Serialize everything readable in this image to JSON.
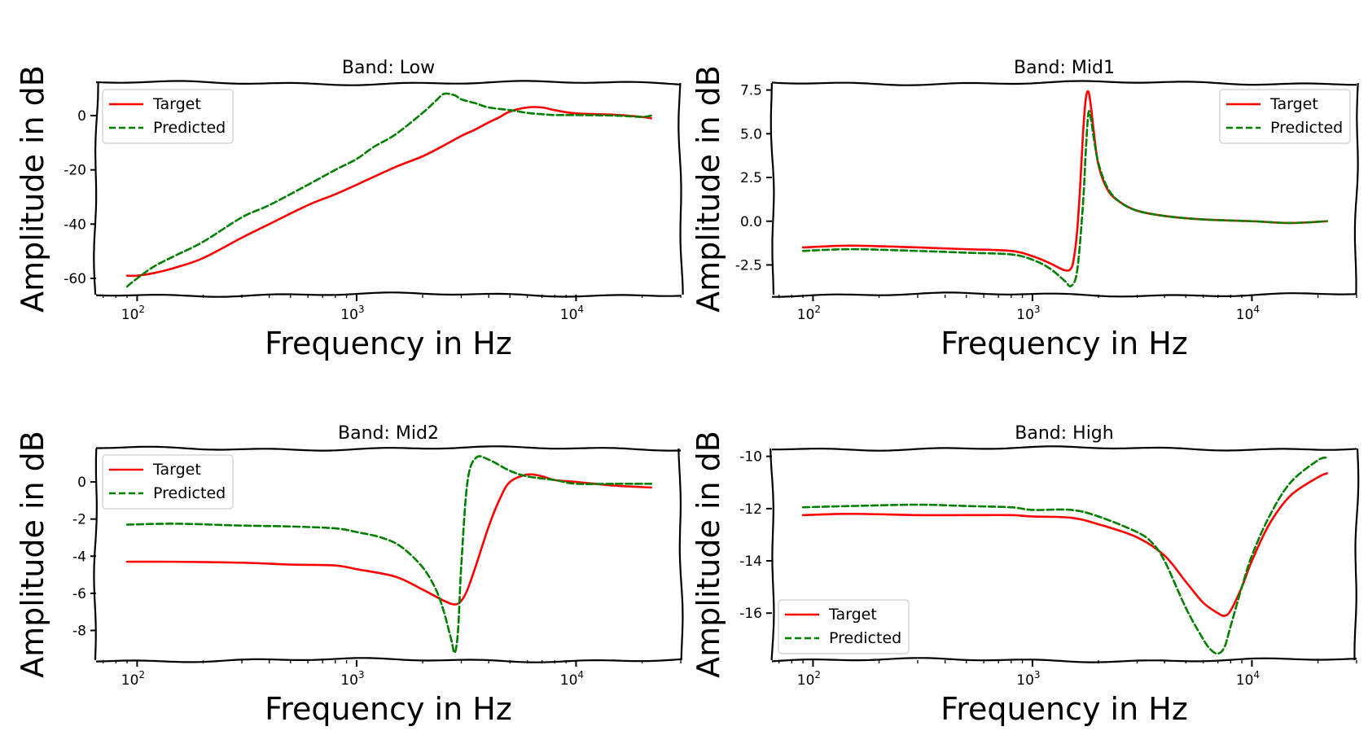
{
  "colors": {
    "target": "#ff0000",
    "predicted": "#007f00",
    "axes": "#000000",
    "background": "#ffffff"
  },
  "chart_data": [
    {
      "type": "line",
      "title": "Band: Low",
      "xlabel": "Frequency in Hz",
      "ylabel": "Amplitude in dB",
      "xscale": "log",
      "xlim": [
        65,
        30000
      ],
      "ylim": [
        -66,
        12
      ],
      "xticks": [
        100,
        1000,
        10000
      ],
      "xtick_labels": [
        [
          "10",
          "2"
        ],
        [
          "10",
          "3"
        ],
        [
          "10",
          "4"
        ]
      ],
      "yticks": [
        0,
        -20,
        -40,
        -60
      ],
      "ytick_labels": [
        "0",
        "-20",
        "-40",
        "-60"
      ],
      "legend": {
        "position": "top-left",
        "entries": [
          "Target",
          "Predicted"
        ]
      },
      "series": [
        {
          "name": "Target",
          "style": "solid",
          "x": [
            90,
            100,
            120,
            150,
            200,
            300,
            400,
            600,
            800,
            1000,
            1500,
            2000,
            2500,
            3000,
            3500,
            4000,
            4500,
            5000,
            6000,
            7000,
            8000,
            10000,
            15000,
            20000,
            22000
          ],
          "y": [
            -59,
            -59,
            -58,
            -56,
            -52.5,
            -45,
            -40,
            -33,
            -29,
            -25.5,
            -19,
            -15,
            -11,
            -7.5,
            -5,
            -2.5,
            -0.5,
            1.5,
            3,
            3,
            2,
            0.8,
            0.3,
            -0.5,
            -1
          ]
        },
        {
          "name": "Predicted",
          "style": "dashed",
          "x": [
            90,
            100,
            120,
            150,
            200,
            300,
            400,
            600,
            800,
            1000,
            1200,
            1500,
            2000,
            2300,
            2500,
            2800,
            3000,
            3500,
            4000,
            5000,
            6000,
            7000,
            8000,
            10000,
            15000,
            20000,
            22000
          ],
          "y": [
            -63,
            -60,
            -55.5,
            -51.5,
            -46.5,
            -37.5,
            -33,
            -25.5,
            -20,
            -16,
            -11.5,
            -7,
            1,
            5.5,
            8,
            7.5,
            6,
            4.5,
            3,
            2,
            1,
            0.5,
            0.2,
            0.2,
            0,
            -0.5,
            0
          ]
        }
      ]
    },
    {
      "type": "line",
      "title": "Band: Mid1",
      "xlabel": "Frequency in Hz",
      "ylabel": "Amplitude in dB",
      "xscale": "log",
      "xlim": [
        65,
        30000
      ],
      "ylim": [
        -4.2,
        7.9
      ],
      "xticks": [
        100,
        1000,
        10000
      ],
      "xtick_labels": [
        [
          "10",
          "2"
        ],
        [
          "10",
          "3"
        ],
        [
          "10",
          "4"
        ]
      ],
      "yticks": [
        7.5,
        5.0,
        2.5,
        0.0,
        -2.5
      ],
      "ytick_labels": [
        "7.5",
        "5.0",
        "2.5",
        "0.0",
        "-2.5"
      ],
      "legend": {
        "position": "top-right",
        "entries": [
          "Target",
          "Predicted"
        ]
      },
      "series": [
        {
          "name": "Target",
          "style": "solid",
          "x": [
            90,
            150,
            300,
            500,
            800,
            1000,
            1200,
            1400,
            1500,
            1550,
            1600,
            1650,
            1700,
            1750,
            1800,
            1850,
            1900,
            2000,
            2200,
            2500,
            3000,
            4000,
            6000,
            10000,
            15000,
            22000
          ],
          "y": [
            -1.5,
            -1.4,
            -1.5,
            -1.6,
            -1.7,
            -2.0,
            -2.4,
            -2.8,
            -2.7,
            -2.0,
            -0.5,
            2.0,
            5.0,
            7.0,
            7.4,
            6.5,
            5.2,
            3.2,
            1.8,
            1.1,
            0.6,
            0.3,
            0.1,
            0.0,
            -0.1,
            0.0
          ]
        },
        {
          "name": "Predicted",
          "style": "dashed",
          "x": [
            90,
            150,
            300,
            500,
            800,
            1000,
            1200,
            1400,
            1500,
            1600,
            1700,
            1750,
            1800,
            1850,
            1900,
            2000,
            2200,
            2500,
            3000,
            4000,
            6000,
            10000,
            15000,
            22000
          ],
          "y": [
            -1.7,
            -1.6,
            -1.7,
            -1.8,
            -1.9,
            -2.2,
            -2.7,
            -3.4,
            -3.7,
            -2.8,
            1.0,
            4.0,
            6.2,
            5.8,
            4.8,
            3.3,
            1.9,
            1.1,
            0.6,
            0.3,
            0.1,
            0.0,
            -0.1,
            0.0
          ]
        }
      ]
    },
    {
      "type": "line",
      "title": "Band: Mid2",
      "xlabel": "Frequency in Hz",
      "ylabel": "Amplitude in dB",
      "xscale": "log",
      "xlim": [
        65,
        30000
      ],
      "ylim": [
        -9.6,
        1.8
      ],
      "xticks": [
        100,
        1000,
        10000
      ],
      "xtick_labels": [
        [
          "10",
          "2"
        ],
        [
          "10",
          "3"
        ],
        [
          "10",
          "4"
        ]
      ],
      "yticks": [
        0,
        -2,
        -4,
        -6,
        -8
      ],
      "ytick_labels": [
        "0",
        "-2",
        "-4",
        "-6",
        "-8"
      ],
      "legend": {
        "position": "top-left",
        "entries": [
          "Target",
          "Predicted"
        ]
      },
      "series": [
        {
          "name": "Target",
          "style": "solid",
          "x": [
            90,
            150,
            300,
            500,
            800,
            1000,
            1500,
            2000,
            2500,
            2800,
            3000,
            3200,
            3500,
            4000,
            4500,
            5000,
            6000,
            7000,
            8000,
            10000,
            15000,
            22000
          ],
          "y": [
            -4.3,
            -4.3,
            -4.35,
            -4.45,
            -4.5,
            -4.7,
            -5.1,
            -5.8,
            -6.4,
            -6.6,
            -6.4,
            -5.8,
            -4.5,
            -2.4,
            -0.9,
            0.0,
            0.4,
            0.3,
            0.1,
            0.0,
            -0.2,
            -0.3
          ]
        },
        {
          "name": "Predicted",
          "style": "dashed",
          "x": [
            90,
            150,
            300,
            500,
            800,
            1000,
            1300,
            1600,
            2000,
            2300,
            2500,
            2700,
            2800,
            2900,
            3000,
            3200,
            3500,
            4000,
            5000,
            6000,
            8000,
            10000,
            15000,
            22000
          ],
          "y": [
            -2.3,
            -2.25,
            -2.35,
            -2.4,
            -2.5,
            -2.7,
            -3.0,
            -3.5,
            -4.6,
            -5.8,
            -7.0,
            -8.5,
            -9.2,
            -8.0,
            -4.5,
            0.0,
            1.3,
            1.2,
            0.6,
            0.3,
            0.1,
            -0.1,
            -0.1,
            -0.1
          ]
        }
      ]
    },
    {
      "type": "line",
      "title": "Band: High",
      "xlabel": "Frequency in Hz",
      "ylabel": "Amplitude in dB",
      "xscale": "log",
      "xlim": [
        65,
        30000
      ],
      "ylim": [
        -17.8,
        -9.7
      ],
      "xticks": [
        100,
        1000,
        10000
      ],
      "xtick_labels": [
        [
          "10",
          "2"
        ],
        [
          "10",
          "3"
        ],
        [
          "10",
          "4"
        ]
      ],
      "yticks": [
        -10,
        -12,
        -14,
        -16
      ],
      "ytick_labels": [
        "-10",
        "-12",
        "-14",
        "-16"
      ],
      "legend": {
        "position": "bottom-left",
        "entries": [
          "Target",
          "Predicted"
        ]
      },
      "series": [
        {
          "name": "Target",
          "style": "solid",
          "x": [
            90,
            150,
            300,
            500,
            800,
            1000,
            1500,
            2000,
            3000,
            4000,
            5000,
            6000,
            7000,
            7500,
            8000,
            9000,
            10000,
            12000,
            15000,
            20000,
            22000
          ],
          "y": [
            -12.25,
            -12.2,
            -12.25,
            -12.25,
            -12.25,
            -12.3,
            -12.35,
            -12.6,
            -13.1,
            -13.8,
            -14.8,
            -15.6,
            -16.0,
            -16.1,
            -15.9,
            -15.0,
            -14.0,
            -12.6,
            -11.5,
            -10.8,
            -10.65
          ]
        },
        {
          "name": "Predicted",
          "style": "dashed",
          "x": [
            90,
            150,
            300,
            500,
            800,
            1000,
            1500,
            2000,
            3000,
            3500,
            4000,
            5000,
            6000,
            6500,
            7000,
            7500,
            8000,
            9000,
            10000,
            12000,
            15000,
            20000,
            22000
          ],
          "y": [
            -11.95,
            -11.9,
            -11.85,
            -11.9,
            -11.95,
            -12.05,
            -12.05,
            -12.3,
            -12.9,
            -13.3,
            -14.0,
            -15.8,
            -17.0,
            -17.4,
            -17.55,
            -17.3,
            -16.5,
            -15.0,
            -13.8,
            -12.3,
            -11.0,
            -10.15,
            -10.05
          ]
        }
      ]
    }
  ]
}
